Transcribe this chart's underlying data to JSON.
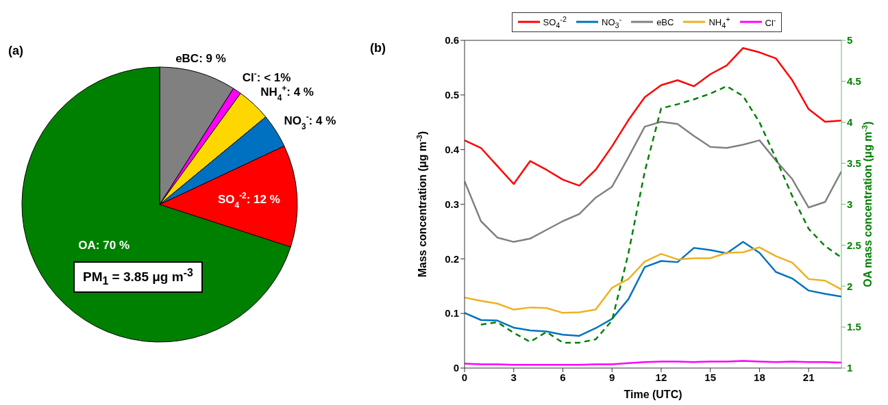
{
  "chart_data": [
    {
      "type": "pie",
      "title": "(a)",
      "categories": [
        "eBC",
        "Cl$^{-}$",
        "NH$_{4}$$^{+}$",
        "NO$_{3}$$^{-}$",
        "SO$_{4}$$^{-2}$",
        "OA"
      ],
      "values": [
        9,
        1,
        4,
        4,
        12,
        70
      ],
      "value_labels": [
        ": 9 %",
        ": < 1%",
        ": 4 %",
        ": 4 %",
        ": 12 %",
        ": 70 %"
      ],
      "colors": [
        "#808080",
        "#ff00ff",
        "#ffd700",
        "#0070c0",
        "#ff0000",
        "#008000"
      ],
      "annotations": [
        "PM$_{1}$ = 3.85 μg m$^{-3}$"
      ]
    },
    {
      "type": "line",
      "title": "(b)",
      "xlabel": "Time (UTC)",
      "ylabel": "Mass concentration (μg m$^{-3}$)",
      "y2label": "OA mass concentration (μg m$^{-3}$)",
      "x": [
        0,
        1,
        2,
        3,
        4,
        5,
        6,
        7,
        8,
        9,
        10,
        11,
        12,
        13,
        14,
        15,
        16,
        17,
        18,
        19,
        20,
        21,
        22,
        23
      ],
      "series": [
        {
          "name": "SO$_{4}$$^{-2}$",
          "color": "#ff0000",
          "line_style": "solid",
          "values": [
            0.417,
            0.403,
            0.37,
            0.337,
            0.379,
            0.363,
            0.345,
            0.334,
            0.363,
            0.406,
            0.454,
            0.496,
            0.518,
            0.527,
            0.516,
            0.538,
            0.554,
            0.586,
            0.578,
            0.567,
            0.527,
            0.474,
            0.451,
            0.453
          ]
        },
        {
          "name": "NO$_{3}$$^{-}$",
          "color": "#0072bd",
          "line_style": "solid",
          "values": [
            0.101,
            0.088,
            0.087,
            0.074,
            0.069,
            0.067,
            0.061,
            0.059,
            0.073,
            0.09,
            0.126,
            0.185,
            0.196,
            0.194,
            0.22,
            0.216,
            0.21,
            0.231,
            0.211,
            0.176,
            0.164,
            0.142,
            0.136,
            0.131
          ]
        },
        {
          "name": "eBC",
          "color": "#808080",
          "line_style": "solid",
          "values": [
            0.342,
            0.269,
            0.239,
            0.231,
            0.237,
            0.253,
            0.269,
            0.282,
            0.312,
            0.332,
            0.386,
            0.442,
            0.451,
            0.447,
            0.425,
            0.405,
            0.403,
            0.409,
            0.417,
            0.38,
            0.346,
            0.294,
            0.304,
            0.36
          ]
        },
        {
          "name": "NH$_{4}$$^{+}$",
          "color": "#edb120",
          "line_style": "solid",
          "values": [
            0.129,
            0.123,
            0.118,
            0.107,
            0.111,
            0.11,
            0.101,
            0.102,
            0.107,
            0.147,
            0.163,
            0.195,
            0.209,
            0.199,
            0.201,
            0.201,
            0.211,
            0.212,
            0.221,
            0.205,
            0.193,
            0.163,
            0.16,
            0.144
          ]
        },
        {
          "name": "Cl$^{-}$",
          "color": "#ff00ff",
          "line_style": "solid",
          "values": [
            0.008,
            0.007,
            0.007,
            0.006,
            0.006,
            0.006,
            0.006,
            0.006,
            0.007,
            0.007,
            0.009,
            0.011,
            0.012,
            0.012,
            0.011,
            0.012,
            0.012,
            0.013,
            0.012,
            0.011,
            0.012,
            0.011,
            0.011,
            0.01
          ]
        },
        {
          "color": "#008000",
          "line_style": "dashed",
          "axis": "y2",
          "values": [
            null,
            1.53,
            1.56,
            1.43,
            1.32,
            1.44,
            1.31,
            1.31,
            1.35,
            1.58,
            2.4,
            3.4,
            4.17,
            4.22,
            4.28,
            4.35,
            4.44,
            4.32,
            4.0,
            3.56,
            3.1,
            2.7,
            2.49,
            2.35
          ]
        }
      ],
      "xlim": [
        0,
        23
      ],
      "xticks": [
        0,
        3,
        6,
        9,
        12,
        15,
        18,
        21
      ],
      "ylim": [
        0,
        0.6
      ],
      "yticks": [
        0,
        0.1,
        0.2,
        0.3,
        0.4,
        0.5,
        0.6
      ],
      "y2lim": [
        1,
        5
      ],
      "y2ticks": [
        1,
        1.5,
        2,
        2.5,
        3,
        3.5,
        4,
        4.5,
        5
      ],
      "legend": "top",
      "marker": "none"
    }
  ]
}
